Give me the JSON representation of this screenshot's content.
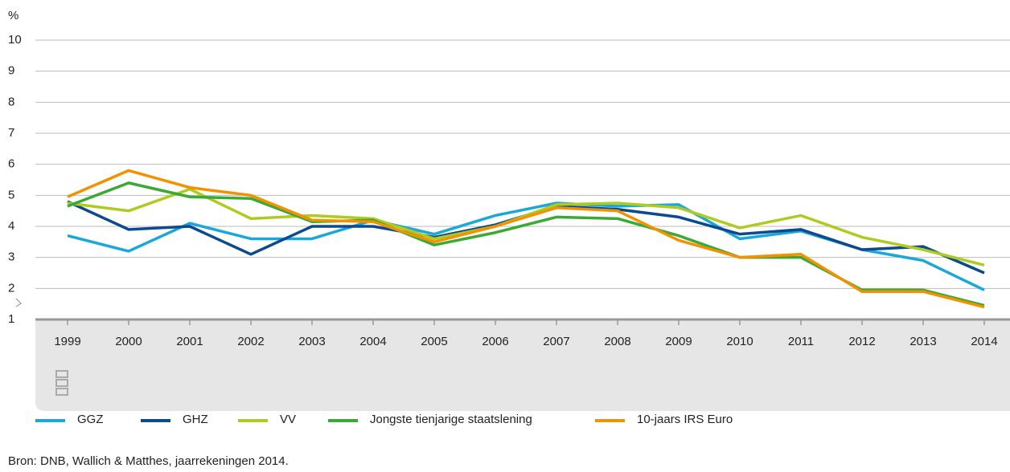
{
  "chart_data": {
    "type": "line",
    "y_unit_label": "%",
    "categories": [
      "1999",
      "2000",
      "2001",
      "2002",
      "2003",
      "2004",
      "2005",
      "2006",
      "2007",
      "2008",
      "2009",
      "2010",
      "2011",
      "2012",
      "2013",
      "2014"
    ],
    "series": [
      {
        "name": "GGZ",
        "color": "#1ba8d8",
        "values": [
          3.7,
          3.2,
          4.1,
          3.6,
          3.6,
          4.2,
          3.75,
          4.35,
          4.75,
          4.65,
          4.7,
          3.6,
          3.85,
          3.25,
          2.9,
          1.95
        ]
      },
      {
        "name": "GHZ",
        "color": "#0b4a8f",
        "values": [
          4.8,
          3.9,
          4.0,
          3.1,
          4.0,
          4.0,
          3.65,
          4.05,
          4.65,
          4.55,
          4.3,
          3.75,
          3.9,
          3.25,
          3.35,
          2.5
        ]
      },
      {
        "name": "VV",
        "color": "#afcb1f",
        "values": [
          4.75,
          4.5,
          5.2,
          4.25,
          4.35,
          4.25,
          3.6,
          4.0,
          4.7,
          4.75,
          4.6,
          3.95,
          4.35,
          3.65,
          3.25,
          2.75
        ]
      },
      {
        "name": "Jongste tienjarige staatslening",
        "color": "#3aaa35",
        "values": [
          4.65,
          5.4,
          4.95,
          4.9,
          4.15,
          4.2,
          3.4,
          3.8,
          4.3,
          4.25,
          3.7,
          3.0,
          3.0,
          1.95,
          1.95,
          1.45
        ]
      },
      {
        "name": "10-jaars IRS Euro",
        "color": "#f39200",
        "values": [
          4.95,
          5.8,
          5.25,
          5.0,
          4.2,
          4.15,
          3.5,
          4.0,
          4.6,
          4.5,
          3.55,
          3.0,
          3.1,
          1.9,
          1.9,
          1.4
        ]
      }
    ],
    "ylim": [
      1,
      10
    ],
    "yticks": [
      1,
      2,
      3,
      4,
      5,
      6,
      7,
      8,
      9,
      10
    ],
    "grid": true,
    "source": "Bron: DNB, Wallich & Matthes, jaarrekeningen 2014."
  }
}
